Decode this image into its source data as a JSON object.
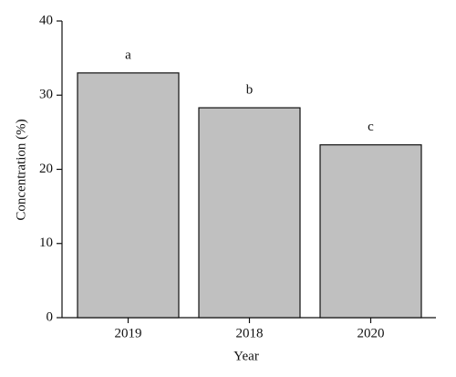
{
  "chart_data": {
    "type": "bar",
    "x_label": "Year",
    "y_label": "Concentration (%)",
    "categories": [
      "2019",
      "2018",
      "2020"
    ],
    "values": [
      33.0,
      28.3,
      23.3
    ],
    "annotations": [
      "a",
      "b",
      "c"
    ],
    "color": "#c0c0c0",
    "ylim": [
      0,
      40
    ],
    "yticks": [
      0,
      10,
      20,
      30,
      40
    ],
    "grid": false
  }
}
